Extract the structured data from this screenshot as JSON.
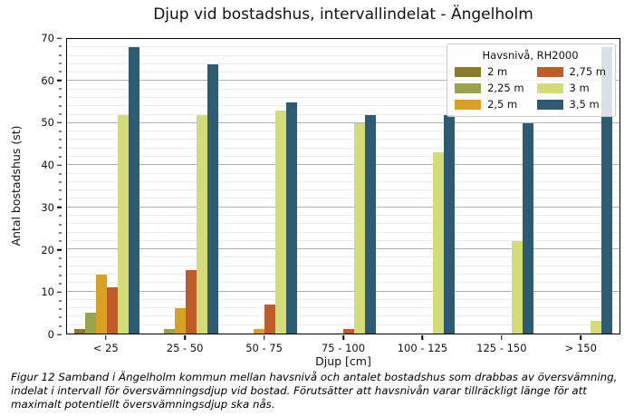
{
  "title": "Djup vid bostadshus, intervallindelat - Ängelholm",
  "axes": {
    "xlabel": "Djup [cm]",
    "ylabel": "Antal bostadshus (st)"
  },
  "legend": {
    "title": "Havsnivå, RH2000"
  },
  "caption": "Figur 12 Samband i Ängelholm kommun mellan havsnivå och antalet bostadshus som drabbas av översvämning, indelat i intervall för översvämningsdjup vid bostad. Förutsätter att havsnivån varar tillräckligt länge för att maximalt potentiellt översvämningsdjup ska nås.",
  "chart_data": {
    "type": "bar",
    "title": "Djup vid bostadshus, intervallindelat - Ängelholm",
    "xlabel": "Djup [cm]",
    "ylabel": "Antal bostadshus (st)",
    "categories": [
      "< 25",
      "25 - 50",
      "50 - 75",
      "75 - 100",
      "100 - 125",
      "125 - 150",
      "> 150"
    ],
    "series": [
      {
        "name": "2 m",
        "color": "#8a7b31",
        "values": [
          1,
          0,
          0,
          0,
          0,
          0,
          0
        ]
      },
      {
        "name": "2,25 m",
        "color": "#9aa34b",
        "values": [
          5,
          1,
          0,
          0,
          0,
          0,
          0
        ]
      },
      {
        "name": "2,5 m",
        "color": "#d8a123",
        "values": [
          14,
          6,
          1,
          0,
          0,
          0,
          0
        ]
      },
      {
        "name": "2,75 m",
        "color": "#bf5b28",
        "values": [
          11,
          15,
          7,
          1,
          0,
          0,
          0
        ]
      },
      {
        "name": "3 m",
        "color": "#d3dc77",
        "values": [
          52,
          52,
          53,
          50,
          43,
          22,
          3
        ]
      },
      {
        "name": "3,5 m",
        "color": "#2e5b74",
        "values": [
          68,
          64,
          55,
          52,
          52,
          50,
          68
        ]
      }
    ],
    "ylim": [
      0,
      70
    ],
    "yticks": [
      0,
      10,
      20,
      30,
      40,
      50,
      60,
      70
    ],
    "minor_grid_step": 2,
    "major_grid_step": 10,
    "legend_title": "Havsnivå, RH2000",
    "legend_position": "upper right",
    "grid": "horizontal"
  }
}
